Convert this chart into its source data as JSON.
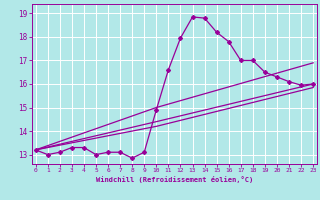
{
  "xlabel": "Windchill (Refroidissement éolien,°C)",
  "bg_color": "#b2e8e8",
  "line_color": "#990099",
  "grid_color": "#ffffff",
  "x_ticks": [
    0,
    1,
    2,
    3,
    4,
    5,
    6,
    7,
    8,
    9,
    10,
    11,
    12,
    13,
    14,
    15,
    16,
    17,
    18,
    19,
    20,
    21,
    22,
    23
  ],
  "y_ticks": [
    13,
    14,
    15,
    16,
    17,
    18,
    19
  ],
  "xlim": [
    -0.3,
    23.3
  ],
  "ylim": [
    12.6,
    19.4
  ],
  "series1_x": [
    0,
    1,
    2,
    3,
    4,
    5,
    6,
    7,
    8,
    9,
    10,
    11,
    12,
    13,
    14,
    15,
    16,
    17,
    18,
    19,
    20,
    21,
    22,
    23
  ],
  "series1_y": [
    13.2,
    13.0,
    13.1,
    13.3,
    13.3,
    13.0,
    13.1,
    13.1,
    12.85,
    13.1,
    14.9,
    16.6,
    17.95,
    18.85,
    18.8,
    18.2,
    17.8,
    17.0,
    17.0,
    16.5,
    16.3,
    16.1,
    15.95,
    16.0
  ],
  "series2_x": [
    0,
    10,
    23
  ],
  "series2_y": [
    13.2,
    15.0,
    16.9
  ],
  "series3_x": [
    0,
    10,
    23
  ],
  "series3_y": [
    13.2,
    14.4,
    16.0
  ],
  "series4_x": [
    0,
    10,
    23
  ],
  "series4_y": [
    13.2,
    14.2,
    15.85
  ]
}
